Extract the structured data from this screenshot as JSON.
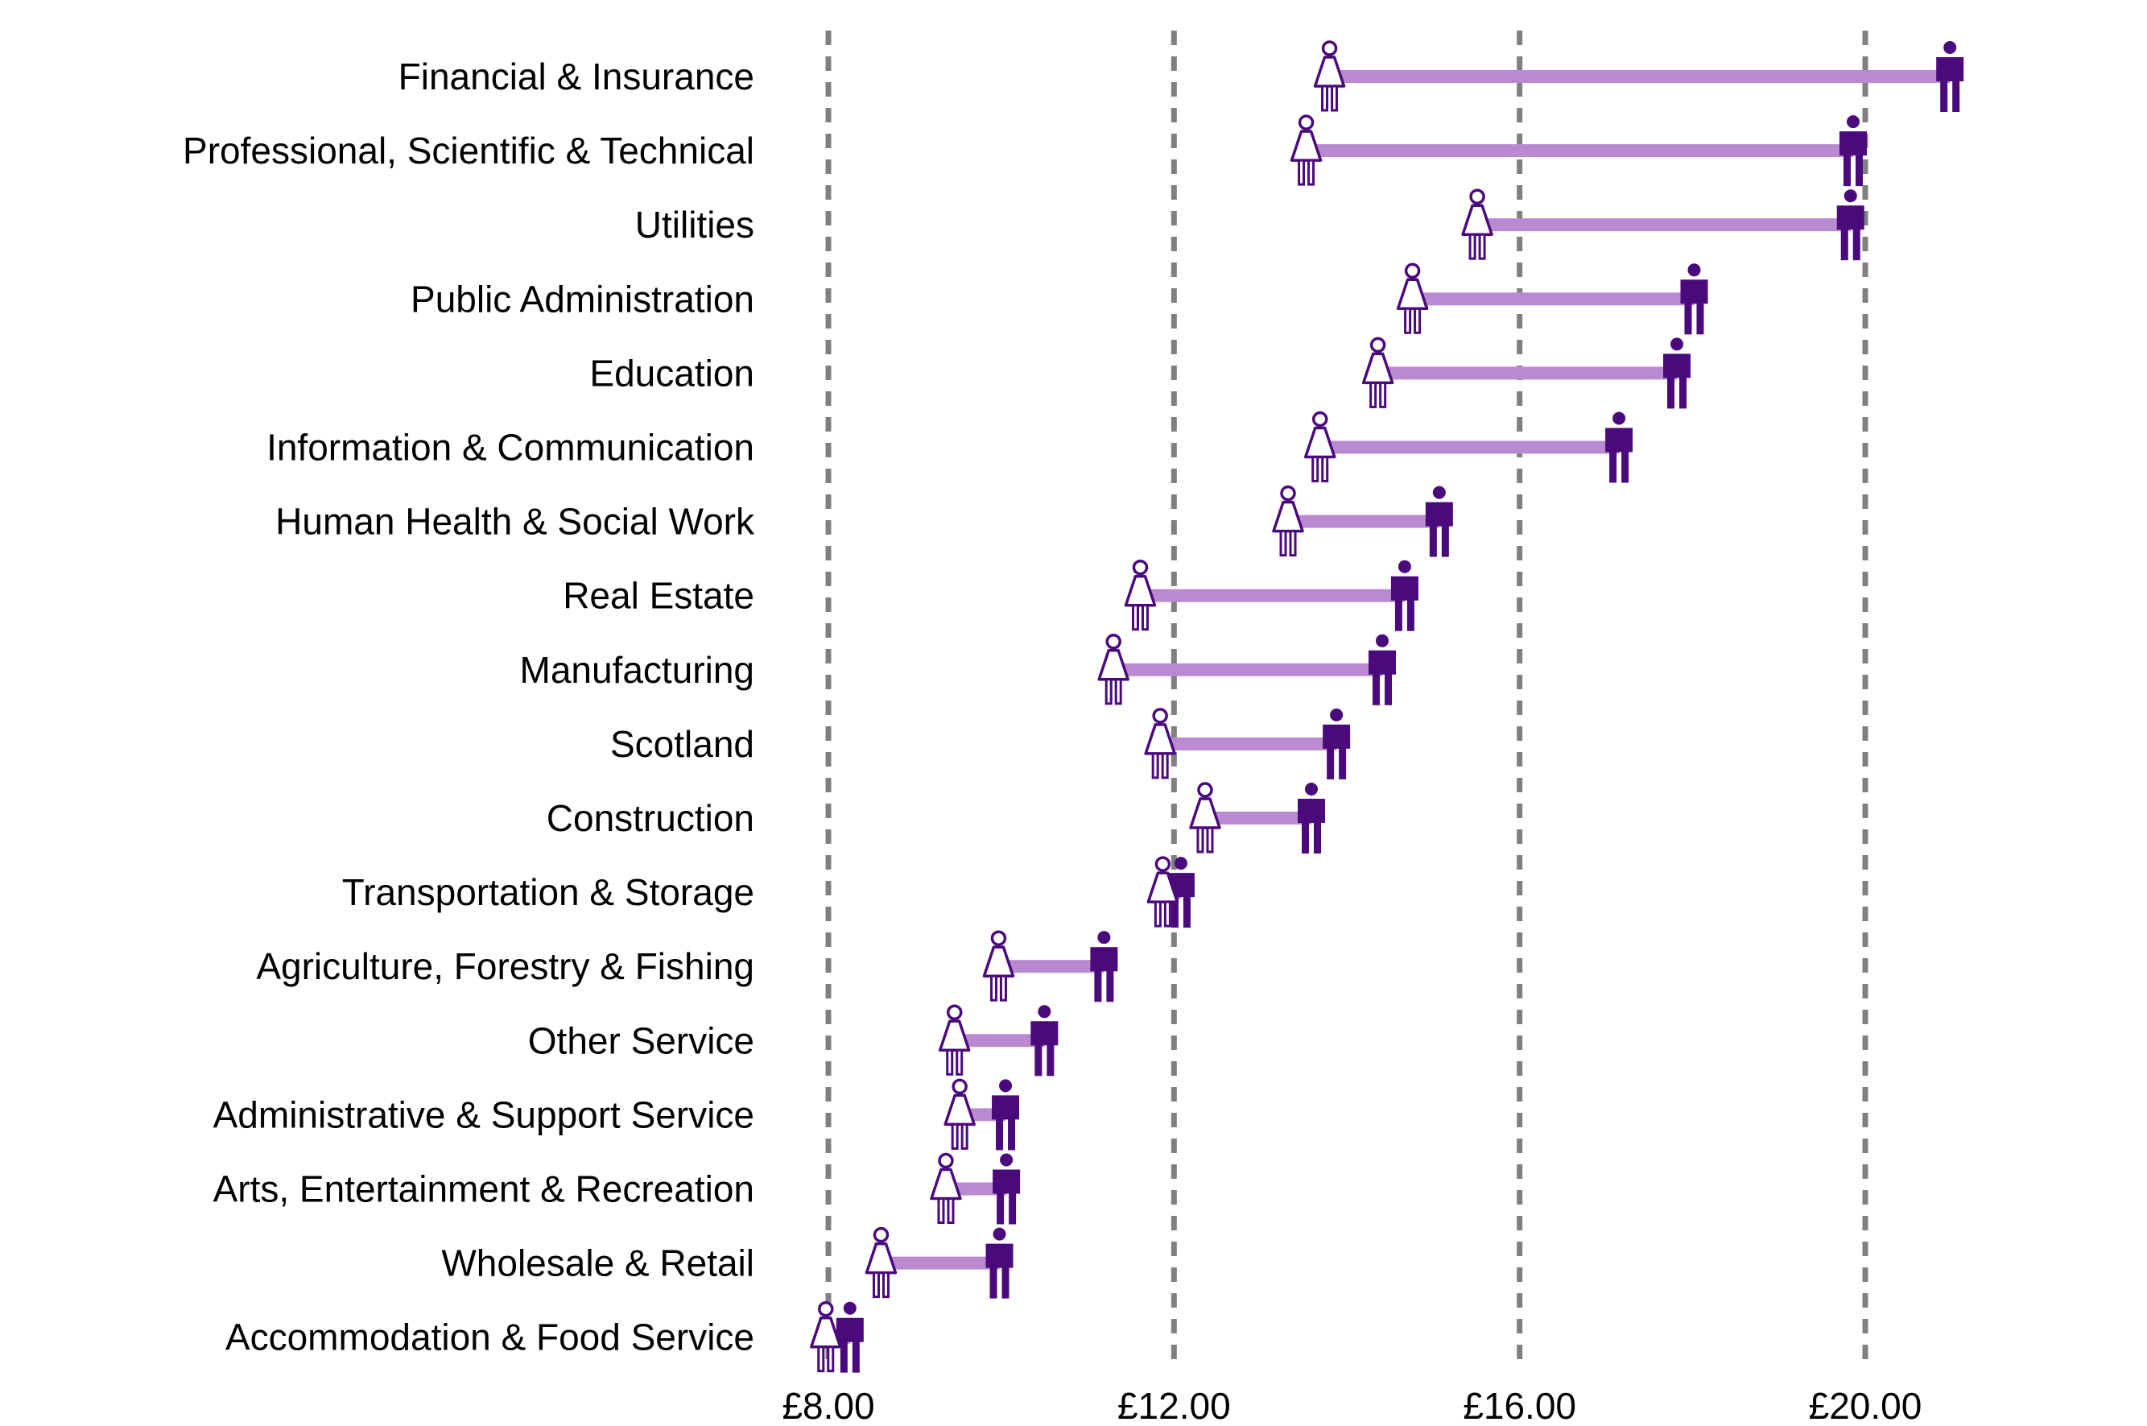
{
  "chart_data": {
    "type": "dumbbell",
    "title": "",
    "xlabel": "",
    "ylabel": "",
    "xlim": [
      7.9,
      21.5
    ],
    "x_ticks": [
      8,
      12,
      16,
      20
    ],
    "x_tick_labels": [
      "£8.00",
      "£12.00",
      "£16.00",
      "£20.00"
    ],
    "grid": "vertical dashed at ticks",
    "legend": "icons (woman = female, man = male)",
    "categories": [
      "Financial & Insurance",
      "Professional, Scientific & Technical",
      "Utilities",
      "Public Administration",
      "Education",
      "Information & Communication",
      "Human Health & Social Work",
      "Real Estate",
      "Manufacturing",
      "Scotland",
      "Construction",
      "Transportation & Storage",
      "Agriculture, Forestry & Fishing",
      "Other Service",
      "Administrative & Support Service",
      "Arts, Entertainment & Recreation",
      "Wholesale & Retail",
      "Accommodation & Food Service"
    ],
    "series": [
      {
        "name": "Female",
        "values": [
          13.8,
          13.53,
          15.51,
          14.76,
          14.36,
          13.69,
          13.32,
          11.61,
          11.3,
          11.84,
          12.36,
          11.87,
          9.97,
          9.46,
          9.52,
          9.36,
          8.61,
          7.97
        ]
      },
      {
        "name": "Male",
        "values": [
          20.98,
          19.86,
          19.83,
          18.02,
          17.82,
          17.15,
          15.07,
          14.67,
          14.41,
          13.88,
          13.59,
          12.08,
          11.19,
          10.5,
          10.05,
          10.06,
          9.98,
          8.25
        ]
      }
    ],
    "colors": {
      "bar": "#b98ad0",
      "male_icon": "#4b0a7c",
      "female_outline": "#4b0a7c",
      "female_fill": "#ffffff",
      "gridline": "#808080"
    }
  }
}
